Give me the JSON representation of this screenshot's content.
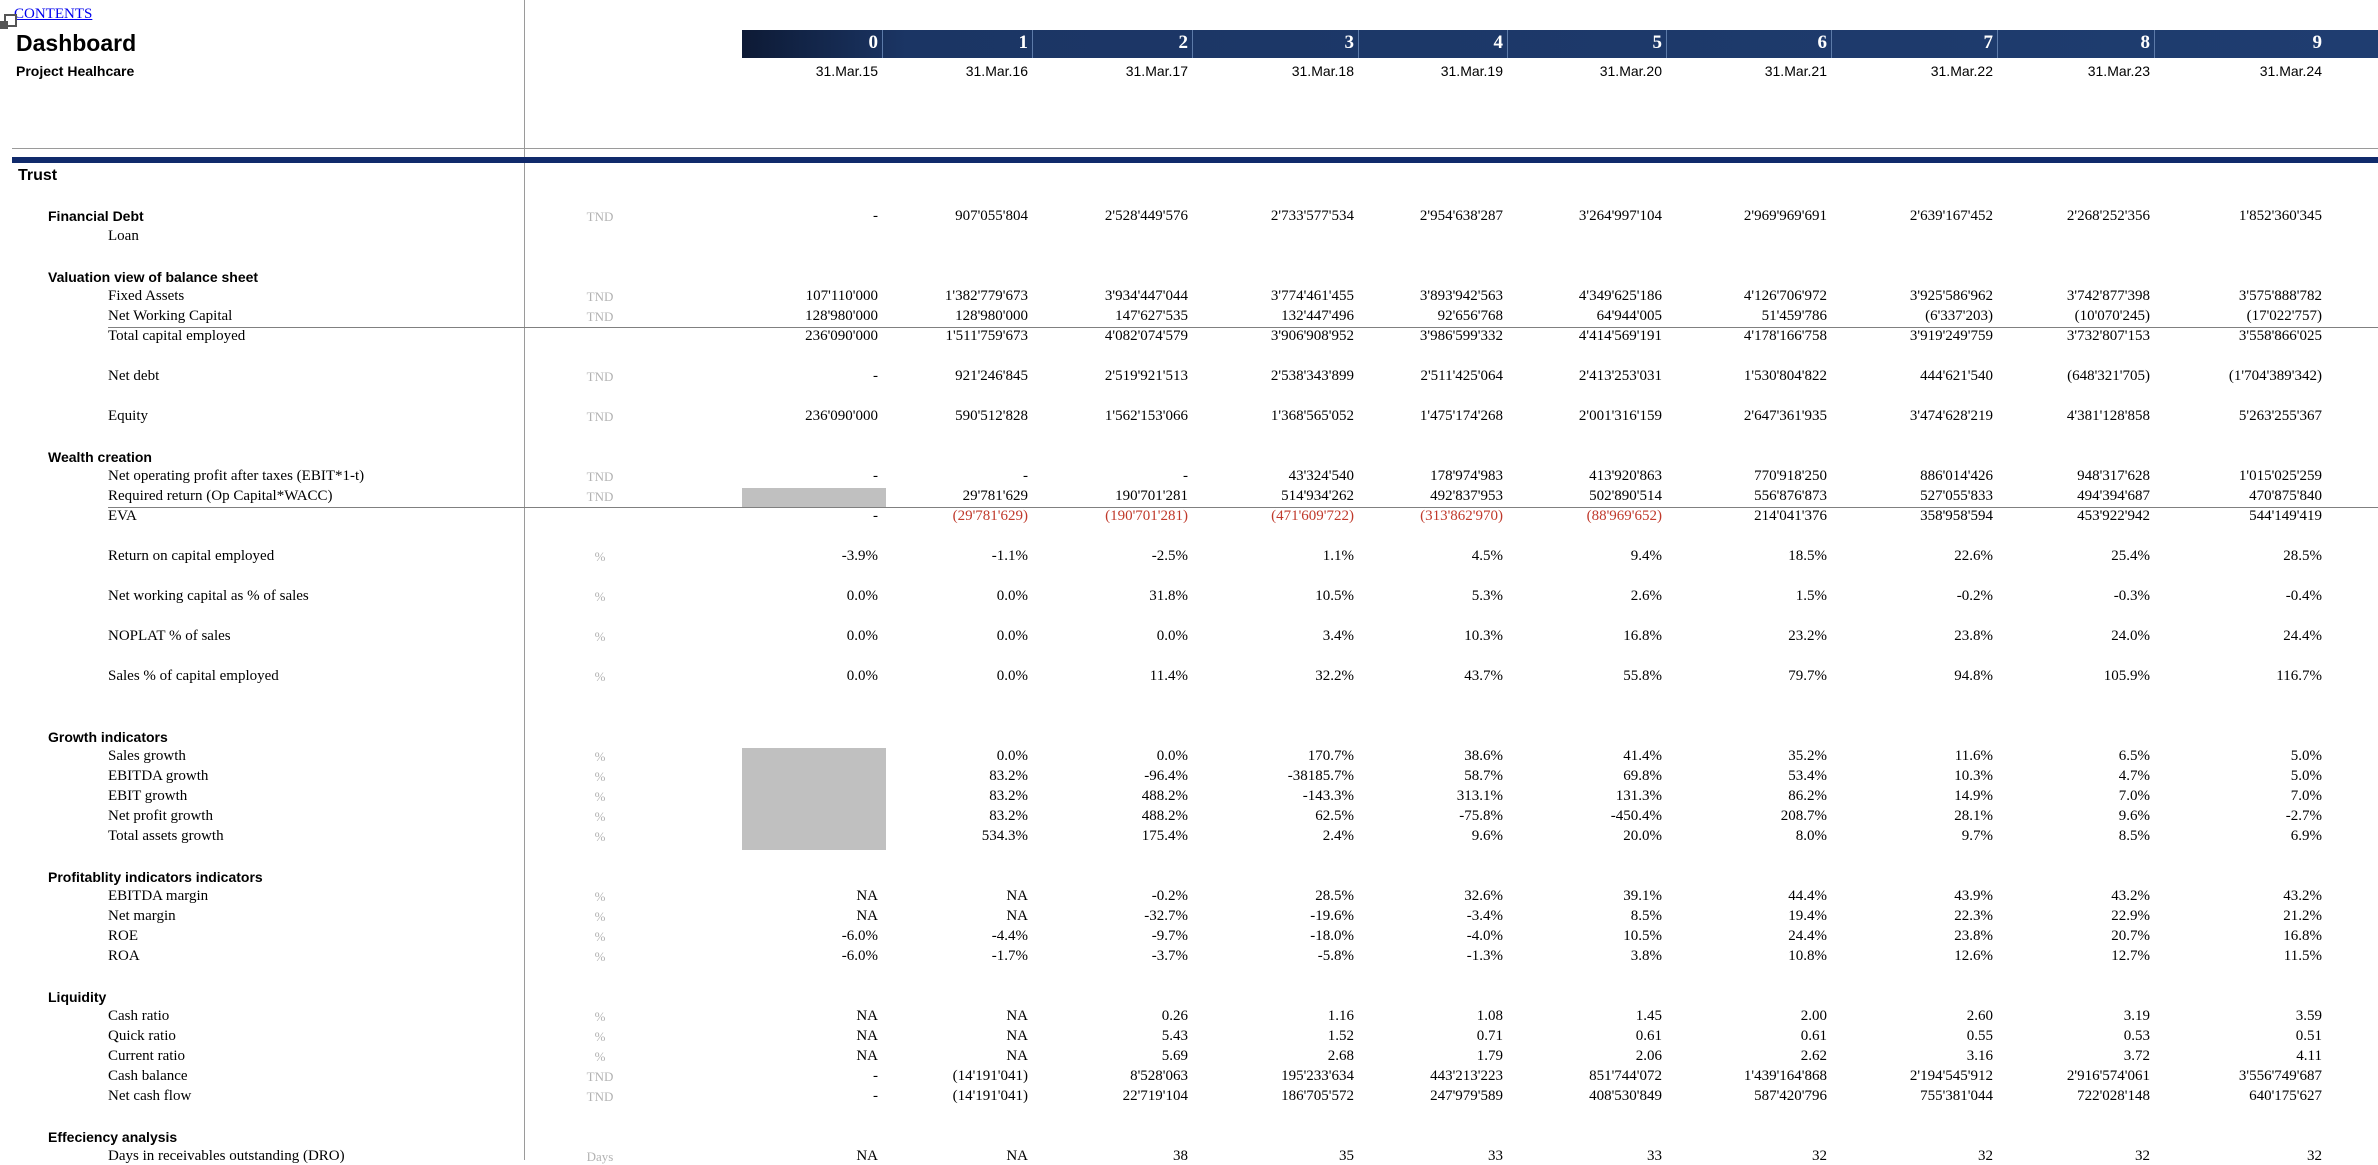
{
  "header": {
    "contents_link": "CONTENTS",
    "title": "Dashboard",
    "subtitle": "Project Healhcare",
    "periods": [
      "0",
      "1",
      "2",
      "3",
      "4",
      "5",
      "6",
      "7",
      "8",
      "9"
    ],
    "dates": [
      "31.Mar.15",
      "31.Mar.16",
      "31.Mar.17",
      "31.Mar.18",
      "31.Mar.19",
      "31.Mar.20",
      "31.Mar.21",
      "31.Mar.22",
      "31.Mar.23",
      "31.Mar.24"
    ]
  },
  "trust_label": "Trust",
  "colors": {
    "header_band": "#1f3d70",
    "negative": "#c0392b",
    "accent_rule": "#102a6b",
    "placeholder_fill": "#c0c0c0"
  },
  "rows": [
    {
      "type": "section",
      "label": "Financial Debt",
      "top": 208
    },
    {
      "type": "row",
      "label": "",
      "unit": "TND",
      "top": 208,
      "values": [
        "-",
        "907'055'804",
        "2'528'449'576",
        "2'733'577'534",
        "2'954'638'287",
        "3'264'997'104",
        "2'969'969'691",
        "2'639'167'452",
        "2'268'252'356",
        "1'852'360'345"
      ]
    },
    {
      "type": "row",
      "label": "Loan",
      "unit": "",
      "top": 228,
      "values": []
    },
    {
      "type": "section",
      "label": "Valuation view of balance sheet",
      "top": 269
    },
    {
      "type": "row",
      "label": "Fixed Assets",
      "unit": "TND",
      "top": 288,
      "values": [
        "107'110'000",
        "1'382'779'673",
        "3'934'447'044",
        "3'774'461'455",
        "3'893'942'563",
        "4'349'625'186",
        "4'126'706'972",
        "3'925'586'962",
        "3'742'877'398",
        "3'575'888'782"
      ]
    },
    {
      "type": "row",
      "label": "Net Working Capital",
      "unit": "TND",
      "top": 308,
      "values": [
        "128'980'000",
        "128'980'000",
        "147'627'535",
        "132'447'496",
        "92'656'768",
        "64'944'005",
        "51'459'786",
        "(6'337'203)",
        "(10'070'245)",
        "(17'022'757)"
      ]
    },
    {
      "type": "row",
      "label": "Total capital employed",
      "unit": "",
      "top": 328,
      "values": [
        "236'090'000",
        "1'511'759'673",
        "4'082'074'579",
        "3'906'908'952",
        "3'986'599'332",
        "4'414'569'191",
        "4'178'166'758",
        "3'919'249'759",
        "3'732'807'153",
        "3'558'866'025"
      ],
      "rule_above": true
    },
    {
      "type": "row",
      "label": "Net debt",
      "unit": "TND",
      "top": 368,
      "values": [
        "-",
        "921'246'845",
        "2'519'921'513",
        "2'538'343'899",
        "2'511'425'064",
        "2'413'253'031",
        "1'530'804'822",
        "444'621'540",
        "(648'321'705)",
        "(1'704'389'342)"
      ]
    },
    {
      "type": "row",
      "label": "Equity",
      "unit": "TND",
      "top": 408,
      "values": [
        "236'090'000",
        "590'512'828",
        "1'562'153'066",
        "1'368'565'052",
        "1'475'174'268",
        "2'001'316'159",
        "2'647'361'935",
        "3'474'628'219",
        "4'381'128'858",
        "5'263'255'367"
      ]
    },
    {
      "type": "section",
      "label": "Wealth creation",
      "top": 449
    },
    {
      "type": "row",
      "label": "Net operating profit after taxes (EBIT*1-t)",
      "unit": "TND",
      "top": 468,
      "values": [
        "-",
        "-",
        "-",
        "43'324'540",
        "178'974'983",
        "413'920'863",
        "770'918'250",
        "886'014'426",
        "948'317'628",
        "1'015'025'259"
      ]
    },
    {
      "type": "row",
      "label": "Required return (Op Capital*WACC)",
      "unit": "TND",
      "top": 488,
      "values": [
        "",
        "29'781'629",
        "190'701'281",
        "514'934'262",
        "492'837'953",
        "502'890'514",
        "556'876'873",
        "527'055'833",
        "494'394'687",
        "470'875'840"
      ]
    },
    {
      "type": "row",
      "label": "EVA",
      "unit": "",
      "top": 508,
      "values": [
        "-",
        "(29'781'629)",
        "(190'701'281)",
        "(471'609'722)",
        "(313'862'970)",
        "(88'969'652)",
        "214'041'376",
        "358'958'594",
        "453'922'942",
        "544'149'419"
      ],
      "neg": [
        1,
        2,
        3,
        4,
        5
      ],
      "rule_above": true
    },
    {
      "type": "row",
      "label": "Return on capital employed",
      "unit": "%",
      "top": 548,
      "values": [
        "-3.9%",
        "-1.1%",
        "-2.5%",
        "1.1%",
        "4.5%",
        "9.4%",
        "18.5%",
        "22.6%",
        "25.4%",
        "28.5%"
      ]
    },
    {
      "type": "row",
      "label": "Net working capital as % of sales",
      "unit": "%",
      "top": 588,
      "values": [
        "0.0%",
        "0.0%",
        "31.8%",
        "10.5%",
        "5.3%",
        "2.6%",
        "1.5%",
        "-0.2%",
        "-0.3%",
        "-0.4%"
      ]
    },
    {
      "type": "row",
      "label": "NOPLAT % of sales",
      "unit": "%",
      "top": 628,
      "values": [
        "0.0%",
        "0.0%",
        "0.0%",
        "3.4%",
        "10.3%",
        "16.8%",
        "23.2%",
        "23.8%",
        "24.0%",
        "24.4%"
      ]
    },
    {
      "type": "row",
      "label": "Sales % of capital employed",
      "unit": "%",
      "top": 668,
      "values": [
        "0.0%",
        "0.0%",
        "11.4%",
        "32.2%",
        "43.7%",
        "55.8%",
        "79.7%",
        "94.8%",
        "105.9%",
        "116.7%"
      ]
    },
    {
      "type": "section",
      "label": "Growth indicators",
      "top": 729
    },
    {
      "type": "row",
      "label": "Sales growth",
      "unit": "%",
      "top": 748,
      "values": [
        "",
        "0.0%",
        "0.0%",
        "170.7%",
        "38.6%",
        "41.4%",
        "35.2%",
        "11.6%",
        "6.5%",
        "5.0%"
      ]
    },
    {
      "type": "row",
      "label": "EBITDA growth",
      "unit": "%",
      "top": 768,
      "values": [
        "",
        "83.2%",
        "-96.4%",
        "-38185.7%",
        "58.7%",
        "69.8%",
        "53.4%",
        "10.3%",
        "4.7%",
        "5.0%"
      ]
    },
    {
      "type": "row",
      "label": "EBIT growth",
      "unit": "%",
      "top": 788,
      "values": [
        "",
        "83.2%",
        "488.2%",
        "-143.3%",
        "313.1%",
        "131.3%",
        "86.2%",
        "14.9%",
        "7.0%",
        "7.0%"
      ]
    },
    {
      "type": "row",
      "label": "Net profit growth",
      "unit": "%",
      "top": 808,
      "values": [
        "",
        "83.2%",
        "488.2%",
        "62.5%",
        "-75.8%",
        "-450.4%",
        "208.7%",
        "28.1%",
        "9.6%",
        "-2.7%"
      ]
    },
    {
      "type": "row",
      "label": "Total assets growth",
      "unit": "%",
      "top": 828,
      "values": [
        "",
        "534.3%",
        "175.4%",
        "2.4%",
        "9.6%",
        "20.0%",
        "8.0%",
        "9.7%",
        "8.5%",
        "6.9%"
      ]
    },
    {
      "type": "section",
      "label": "Profitablity indicators indicators",
      "top": 869
    },
    {
      "type": "row",
      "label": "EBITDA margin",
      "unit": "%",
      "top": 888,
      "values": [
        "NA",
        "NA",
        "-0.2%",
        "28.5%",
        "32.6%",
        "39.1%",
        "44.4%",
        "43.9%",
        "43.2%",
        "43.2%"
      ]
    },
    {
      "type": "row",
      "label": "Net margin",
      "unit": "%",
      "top": 908,
      "values": [
        "NA",
        "NA",
        "-32.7%",
        "-19.6%",
        "-3.4%",
        "8.5%",
        "19.4%",
        "22.3%",
        "22.9%",
        "21.2%"
      ]
    },
    {
      "type": "row",
      "label": "ROE",
      "unit": "%",
      "top": 928,
      "values": [
        "-6.0%",
        "-4.4%",
        "-9.7%",
        "-18.0%",
        "-4.0%",
        "10.5%",
        "24.4%",
        "23.8%",
        "20.7%",
        "16.8%"
      ]
    },
    {
      "type": "row",
      "label": "ROA",
      "unit": "%",
      "top": 948,
      "values": [
        "-6.0%",
        "-1.7%",
        "-3.7%",
        "-5.8%",
        "-1.3%",
        "3.8%",
        "10.8%",
        "12.6%",
        "12.7%",
        "11.5%"
      ]
    },
    {
      "type": "section",
      "label": "Liquidity",
      "top": 989
    },
    {
      "type": "row",
      "label": "Cash ratio",
      "unit": "%",
      "top": 1008,
      "values": [
        "NA",
        "NA",
        "0.26",
        "1.16",
        "1.08",
        "1.45",
        "2.00",
        "2.60",
        "3.19",
        "3.59"
      ]
    },
    {
      "type": "row",
      "label": "Quick ratio",
      "unit": "%",
      "top": 1028,
      "values": [
        "NA",
        "NA",
        "5.43",
        "1.52",
        "0.71",
        "0.61",
        "0.61",
        "0.55",
        "0.53",
        "0.51"
      ]
    },
    {
      "type": "row",
      "label": "Current ratio",
      "unit": "%",
      "top": 1048,
      "values": [
        "NA",
        "NA",
        "5.69",
        "2.68",
        "1.79",
        "2.06",
        "2.62",
        "3.16",
        "3.72",
        "4.11"
      ]
    },
    {
      "type": "row",
      "label": "Cash balance",
      "unit": "TND",
      "top": 1068,
      "values": [
        "-",
        "(14'191'041)",
        "8'528'063",
        "195'233'634",
        "443'213'223",
        "851'744'072",
        "1'439'164'868",
        "2'194'545'912",
        "2'916'574'061",
        "3'556'749'687"
      ]
    },
    {
      "type": "row",
      "label": "Net cash flow",
      "unit": "TND",
      "top": 1088,
      "values": [
        "-",
        "(14'191'041)",
        "22'719'104",
        "186'705'572",
        "247'979'589",
        "408'530'849",
        "587'420'796",
        "755'381'044",
        "722'028'148",
        "640'175'627"
      ]
    },
    {
      "type": "section",
      "label": "Effeciency analysis",
      "top": 1129
    },
    {
      "type": "row",
      "label": "Days in receivables outstanding (DRO)",
      "unit": "Days",
      "top": 1148,
      "values": [
        "NA",
        "NA",
        "38",
        "35",
        "33",
        "33",
        "32",
        "32",
        "32",
        "32"
      ]
    }
  ]
}
